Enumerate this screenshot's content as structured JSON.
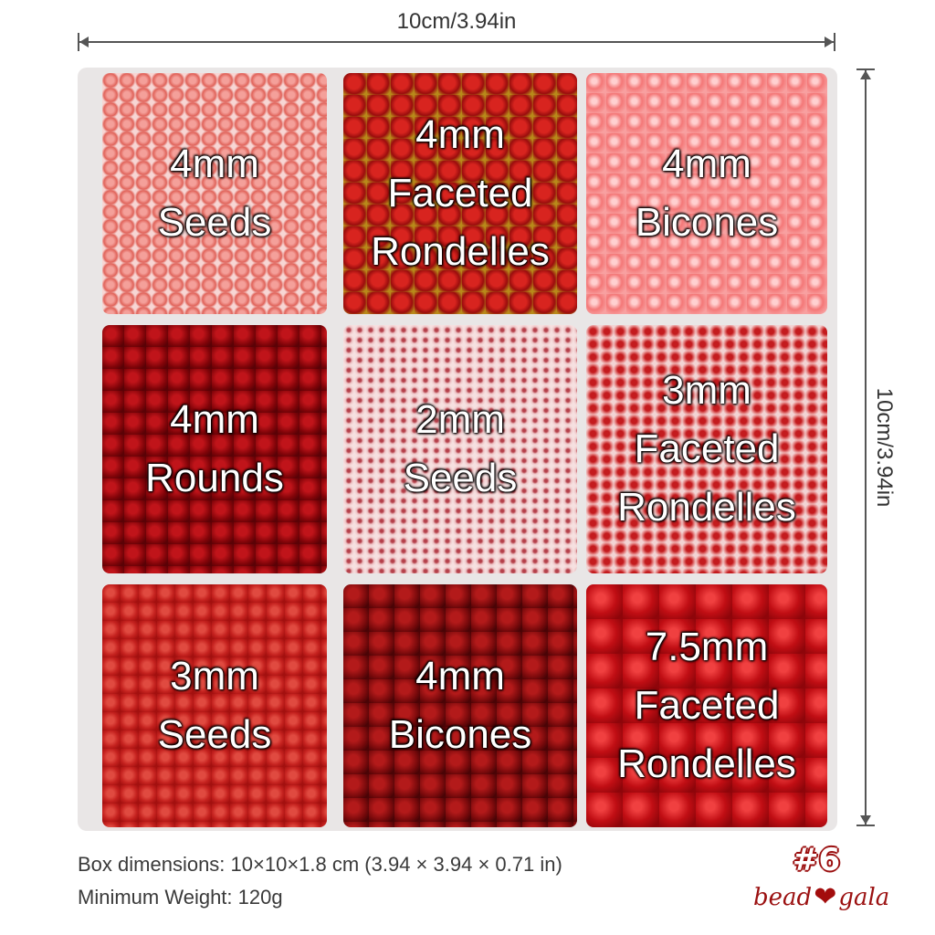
{
  "dimensions": {
    "width_label": "10cm/3.94in",
    "height_label": "10cm/3.94in"
  },
  "compartments": [
    {
      "label": "4mm\nSeeds"
    },
    {
      "label": "4mm\nFaceted\nRondelles"
    },
    {
      "label": "4mm\nBicones"
    },
    {
      "label": "4mm\nRounds"
    },
    {
      "label": "2mm\nSeeds"
    },
    {
      "label": "3mm\nFaceted\nRondelles"
    },
    {
      "label": "3mm\nSeeds"
    },
    {
      "label": "4mm\nBicones"
    },
    {
      "label": "7.5mm\nFaceted\nRondelles"
    }
  ],
  "info": {
    "box_dimensions": "Box dimensions: 10×10×1.8 cm (3.94 × 3.94 × 0.71 in)",
    "weight": "Minimum Weight: 120g"
  },
  "badge": "#6",
  "logo": {
    "text_left": "bead",
    "text_right": "gala",
    "icon": "heart-apple-icon"
  },
  "colors": {
    "brand": "#9b1010"
  }
}
